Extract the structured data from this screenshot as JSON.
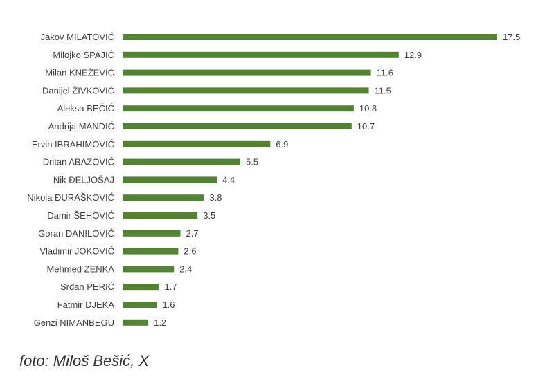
{
  "chart_data": {
    "type": "bar",
    "orientation": "horizontal",
    "categories": [
      "Jakov MILATOVIĆ",
      "Milojko SPAJIĆ",
      "Milan KNEŽEVIĆ",
      "Danijel ŽIVKOVIĆ",
      "Aleksa BEČIĆ",
      "Andrija MANDIĆ",
      "Ervin IBRAHIMOVIĆ",
      "Dritan ABAZOVIĆ",
      "Nik ĐELJOŠAJ",
      "Nikola ĐURAŠKOVIĆ",
      "Damir ŠEHOVIĆ",
      "Goran DANILOVIĆ",
      "Vladimir JOKOVIĆ",
      "Mehmed ZENKA",
      "Srđan PERIĆ",
      "Fatmir DJEKA",
      "Genzi NIMANBEGU"
    ],
    "values": [
      17.5,
      12.9,
      11.6,
      11.5,
      10.8,
      10.7,
      6.9,
      5.5,
      4.4,
      3.8,
      3.5,
      2.7,
      2.6,
      2.4,
      1.7,
      1.6,
      1.2
    ],
    "value_labels": [
      "17.5",
      "12.9",
      "11.6",
      "11.5",
      "10.8",
      "10.7",
      "6.9",
      "5.5",
      "4.4",
      "3.8",
      "3.5",
      "2.7",
      "2.6",
      "2.4",
      "1.7",
      "1.6",
      "1.2"
    ],
    "xlim": [
      0,
      17.5
    ],
    "bar_color": "#548235",
    "grid": false,
    "legend": "none"
  },
  "caption": "foto: Miloš Bešić, X"
}
